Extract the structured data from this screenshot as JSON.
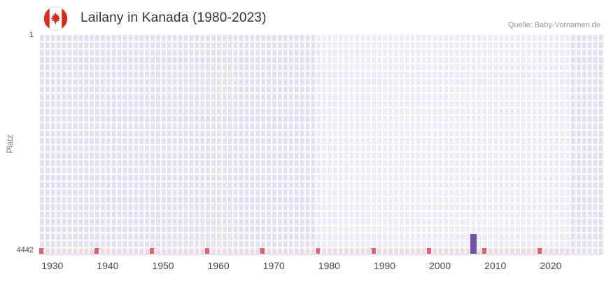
{
  "header": {
    "title": "Lailany in Kanada (1980-2023)",
    "source": "Quelle: Baby-Vornamen.de",
    "flag_icon": "canada-flag-icon"
  },
  "chart_data": {
    "type": "bar",
    "title": "Lailany in Kanada (1980-2023)",
    "xlabel": "",
    "ylabel": "Platz",
    "grid": true,
    "legend": null,
    "y_axis": {
      "top_tick": "1",
      "bottom_tick": "4442",
      "min": 1,
      "max": 4442,
      "inverted": true
    },
    "x_axis": {
      "domain_start": 1928,
      "domain_end": 2030,
      "ticks": [
        1930,
        1940,
        1950,
        1960,
        1970,
        1980,
        1990,
        2000,
        2010,
        2020
      ]
    },
    "series": [
      {
        "name": "Platz",
        "points": [
          {
            "year": 2006,
            "rank": 4442
          }
        ]
      }
    ],
    "highlight_band_years": {
      "start": 1978,
      "end": 2024
    },
    "strip_range_years": {
      "start": 1928,
      "end": 2024
    },
    "bottom_mark_years": [
      1928,
      1938,
      1948,
      1958,
      1968,
      1978,
      1988,
      1998,
      2008,
      2018
    ],
    "colors": {
      "bar": "#6e51a5",
      "plot_bg": "#e3e0ef",
      "band_bg": "#edeaf7",
      "grid_line": "#ffffff",
      "strip_pink": "#f3d9e3",
      "mark_red": "#e0606b",
      "axis_text": "#4a4463",
      "ylabel_text": "#7b6fa6",
      "title_text": "#333333",
      "source_text": "#999999",
      "flag_red": "#d52b1e"
    }
  }
}
